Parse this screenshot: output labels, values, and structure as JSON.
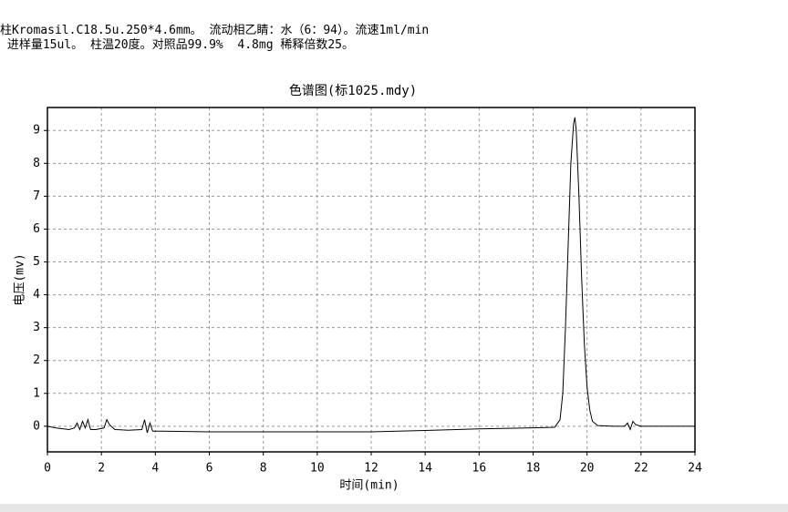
{
  "header": {
    "line1": "柱Kromasil.C18.5u.250*4.6mm。 流动相乙睛：水（6：94）。流速1ml/min",
    "line2": " 进样量15ul。 柱温20度。对照品99.9%  4.8mg 稀释倍数25。"
  },
  "chart_data": {
    "type": "line",
    "title": "色谱图(标1025.mdy)",
    "x_label": "时间(min)",
    "y_label": "电压(mv)",
    "x": [
      0,
      0.3,
      0.8,
      1.0,
      1.1,
      1.2,
      1.3,
      1.4,
      1.5,
      1.6,
      1.8,
      2.1,
      2.2,
      2.3,
      2.5,
      3.0,
      3.5,
      3.6,
      3.7,
      3.8,
      3.9,
      4.2,
      6,
      8,
      10,
      12,
      14,
      16,
      18,
      18.8,
      19.0,
      19.1,
      19.2,
      19.3,
      19.4,
      19.5,
      19.55,
      19.6,
      19.7,
      19.8,
      19.9,
      20.0,
      20.1,
      20.2,
      20.4,
      21,
      21.4,
      21.5,
      21.6,
      21.7,
      21.8,
      22,
      24
    ],
    "values": [
      0,
      -0.05,
      -0.1,
      -0.05,
      0.1,
      -0.1,
      0.15,
      -0.05,
      0.2,
      -0.1,
      -0.1,
      -0.05,
      0.2,
      0.05,
      -0.1,
      -0.12,
      -0.1,
      0.2,
      -0.2,
      0.1,
      -0.15,
      -0.15,
      -0.17,
      -0.17,
      -0.17,
      -0.17,
      -0.13,
      -0.08,
      -0.05,
      -0.03,
      0.2,
      1.0,
      3.0,
      5.5,
      8.0,
      9.2,
      9.4,
      9.0,
      7.0,
      4.5,
      2.5,
      1.2,
      0.5,
      0.15,
      0.02,
      0.0,
      0.0,
      0.1,
      -0.1,
      0.15,
      0.05,
      0.0,
      0.0
    ],
    "color": "#000000",
    "xlim": [
      0,
      24
    ],
    "xticks": [
      0,
      2,
      4,
      6,
      8,
      10,
      12,
      14,
      16,
      18,
      20,
      22,
      24
    ],
    "ylim": [
      -0.78,
      9.7
    ],
    "yticks": [
      0,
      1,
      2,
      3,
      4,
      5,
      6,
      7,
      8,
      9
    ],
    "grid": true
  }
}
